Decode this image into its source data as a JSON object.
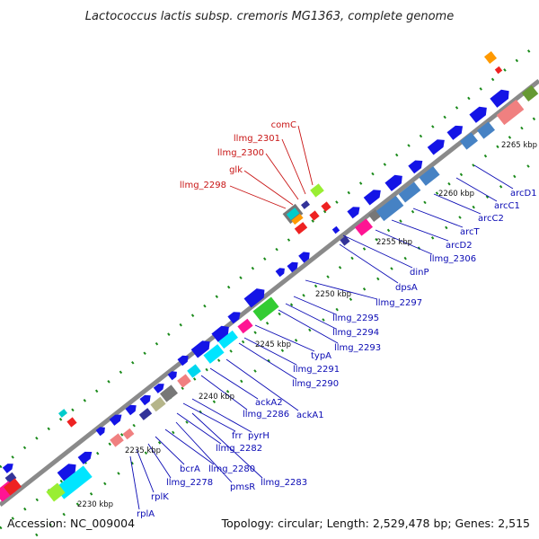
{
  "header": {
    "title": "Lactococcus lactis subsp. cremoris MG1363, complete genome"
  },
  "footer": {
    "accession": "Accession: NC_009004",
    "topology": "Topology: circular; Length: 2,529,478 bp; Genes: 2,515"
  },
  "ticks": [
    {
      "label": "2230 kbp"
    },
    {
      "label": "2235 kbp"
    },
    {
      "label": "2240 kbp"
    },
    {
      "label": "2245 kbp"
    },
    {
      "label": "2250 kbp"
    },
    {
      "label": "2255 kbp"
    },
    {
      "label": "2260 kbp"
    },
    {
      "label": "2265 kbp"
    }
  ],
  "gene_labels": [
    {
      "name": "rplA",
      "color": "blue"
    },
    {
      "name": "rplK",
      "color": "blue"
    },
    {
      "name": "llmg_2278",
      "color": "blue"
    },
    {
      "name": "bcrA",
      "color": "blue"
    },
    {
      "name": "pmsR",
      "color": "blue"
    },
    {
      "name": "llmg_2280",
      "color": "blue"
    },
    {
      "name": "llmg_2283",
      "color": "blue"
    },
    {
      "name": "llmg_2282",
      "color": "blue"
    },
    {
      "name": "frr",
      "color": "blue"
    },
    {
      "name": "pyrH",
      "color": "blue"
    },
    {
      "name": "llmg_2286",
      "color": "blue"
    },
    {
      "name": "ackA2",
      "color": "blue"
    },
    {
      "name": "ackA1",
      "color": "blue"
    },
    {
      "name": "llmg_2290",
      "color": "blue"
    },
    {
      "name": "llmg_2291",
      "color": "blue"
    },
    {
      "name": "typA",
      "color": "blue"
    },
    {
      "name": "llmg_2293",
      "color": "blue"
    },
    {
      "name": "llmg_2294",
      "color": "blue"
    },
    {
      "name": "llmg_2295",
      "color": "blue"
    },
    {
      "name": "llmg_2297",
      "color": "blue"
    },
    {
      "name": "dpsA",
      "color": "blue"
    },
    {
      "name": "dinP",
      "color": "blue"
    },
    {
      "name": "llmg_2306",
      "color": "blue"
    },
    {
      "name": "arcD2",
      "color": "blue"
    },
    {
      "name": "arcT",
      "color": "blue"
    },
    {
      "name": "arcC2",
      "color": "blue"
    },
    {
      "name": "arcC1",
      "color": "blue"
    },
    {
      "name": "arcD1",
      "color": "blue"
    },
    {
      "name": "llmg_2298",
      "color": "red"
    },
    {
      "name": "glk",
      "color": "red"
    },
    {
      "name": "llmg_2300",
      "color": "red"
    },
    {
      "name": "llmg_2301",
      "color": "red"
    },
    {
      "name": "comC",
      "color": "red"
    }
  ],
  "colors": {
    "backbone": "#8a8a8a",
    "forward_gene": "#1414e6",
    "label_blue": "#0a0ab4",
    "label_red": "#c81414",
    "gc_dots": "#1a8a1a"
  }
}
